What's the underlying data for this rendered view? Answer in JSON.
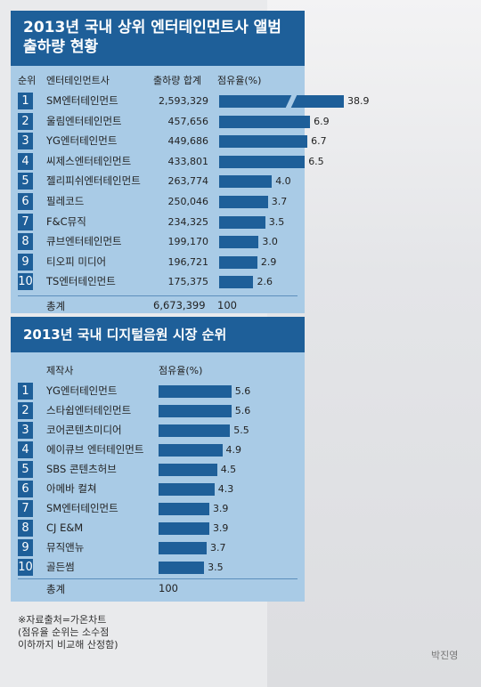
{
  "chart_data": [
    {
      "type": "bar",
      "title": "2013년 국내 상위 엔터테인먼트사 앨범 출하량 현황",
      "headers": [
        "순위",
        "엔터테인먼트사",
        "출하량 합계",
        "점유율(%)"
      ],
      "ranks": [
        "1",
        "2",
        "3",
        "4",
        "5",
        "6",
        "7",
        "8",
        "9",
        "10"
      ],
      "categories": [
        "SM엔터테인먼트",
        "울림엔터테인먼트",
        "YG엔터테인먼트",
        "씨제스엔터테인먼트",
        "젤리피쉬엔터테인먼트",
        "필레코드",
        "F&C뮤직",
        "큐브엔터테인먼트",
        "티오피 미디어",
        "TS엔터테인먼트"
      ],
      "shipments": [
        "2,593,329",
        "457,656",
        "449,686",
        "433,801",
        "263,774",
        "250,046",
        "234,325",
        "199,170",
        "196,721",
        "175,375"
      ],
      "values": [
        38.9,
        6.9,
        6.7,
        6.5,
        4.0,
        3.7,
        3.5,
        3.0,
        2.9,
        2.6
      ],
      "value_labels": [
        "38.9",
        "6.9",
        "6.7",
        "6.5",
        "4.0",
        "3.7",
        "3.5",
        "3.0",
        "2.9",
        "2.6"
      ],
      "total_label": "총계",
      "total_shipments": "6,673,399",
      "total_share": "100"
    },
    {
      "type": "bar",
      "title": "2013년 국내 디지털음원 시장 순위",
      "headers": [
        "제작사",
        "점유율(%)"
      ],
      "ranks": [
        "1",
        "2",
        "3",
        "4",
        "5",
        "6",
        "7",
        "8",
        "9",
        "10"
      ],
      "categories": [
        "YG엔터테인먼트",
        "스타쉽엔터테인먼트",
        "코어콘텐츠미디어",
        "에이큐브 엔터테인먼트",
        "SBS 콘텐츠허브",
        "아메바 컬쳐",
        "SM엔터테인먼트",
        "CJ E&M",
        "뮤직앤뉴",
        "골든썸"
      ],
      "values": [
        5.6,
        5.6,
        5.5,
        4.9,
        4.5,
        4.3,
        3.9,
        3.9,
        3.7,
        3.5
      ],
      "value_labels": [
        "5.6",
        "5.6",
        "5.5",
        "4.9",
        "4.5",
        "4.3",
        "3.9",
        "3.9",
        "3.7",
        "3.5"
      ],
      "total_label": "총계",
      "total_share": "100"
    }
  ],
  "footnote": [
    "※자료출처=가온차트",
    "(점유율 순위는 소수점",
    "이하까지 비교해 산정함)"
  ],
  "photo_credit": "박진영"
}
